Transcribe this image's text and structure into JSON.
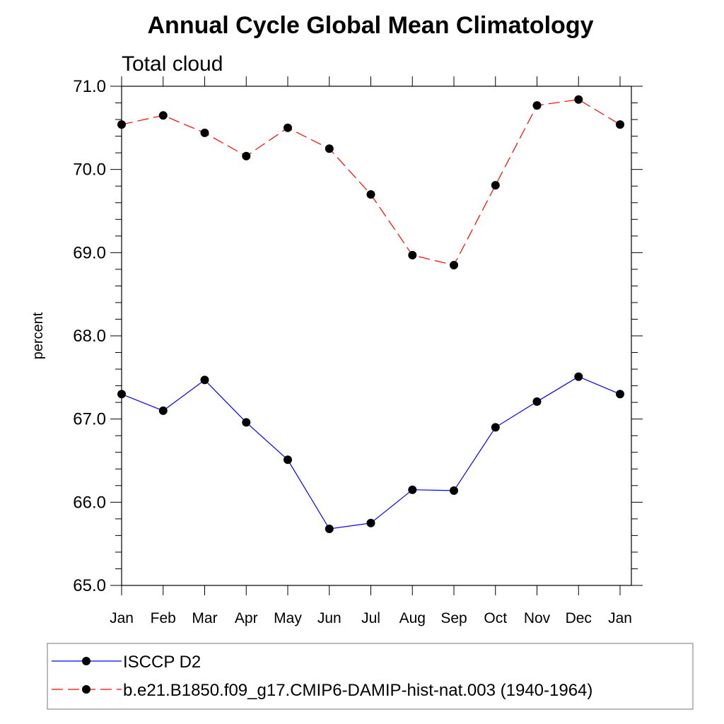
{
  "chart_data": {
    "type": "line",
    "title": "Annual Cycle Global Mean Climatology",
    "subtitle": "Total cloud",
    "xlabel": "",
    "ylabel": "percent",
    "categories": [
      "Jan",
      "Feb",
      "Mar",
      "Apr",
      "May",
      "Jun",
      "Jul",
      "Aug",
      "Sep",
      "Oct",
      "Nov",
      "Dec",
      "Jan"
    ],
    "ylim": [
      65.0,
      71.0
    ],
    "yticks": [
      "65.0",
      "66.0",
      "67.0",
      "68.0",
      "69.0",
      "70.0",
      "71.0"
    ],
    "grid": false,
    "legend_position": "bottom",
    "series": [
      {
        "name": "ISCCP D2",
        "color": "#0000ff",
        "line_style": "solid",
        "marker": "filled-circle",
        "values": [
          67.3,
          67.1,
          67.47,
          66.96,
          66.51,
          65.68,
          65.75,
          66.15,
          66.14,
          66.9,
          67.21,
          67.51,
          67.3
        ]
      },
      {
        "name": "b.e21.B1850.f09_g17.CMIP6-DAMIP-hist-nat.003 (1940-1964)",
        "color": "#ff0000",
        "line_style": "dashed",
        "marker": "filled-circle",
        "values": [
          70.54,
          70.65,
          70.44,
          70.16,
          70.5,
          70.25,
          69.7,
          68.97,
          68.85,
          69.81,
          70.77,
          70.84,
          70.54
        ]
      }
    ]
  }
}
